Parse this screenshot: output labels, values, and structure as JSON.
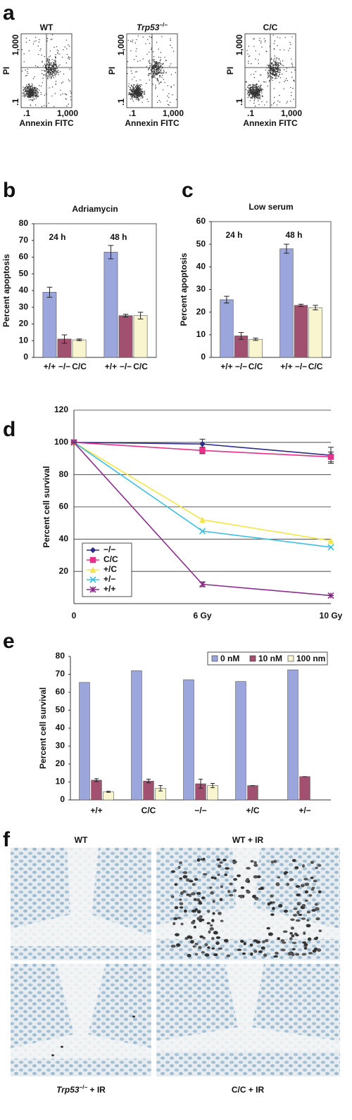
{
  "panel_labels": [
    "a",
    "b",
    "c",
    "d",
    "e",
    "f"
  ],
  "flow": {
    "x_label": "Annexin FITC",
    "y_label": "PI",
    "tick_labels": [
      ".1",
      "1,000"
    ],
    "plots": [
      {
        "title": "WT"
      },
      {
        "title_italic": "Trp53",
        "title_sup": "−/−"
      },
      {
        "title": "C/C"
      }
    ]
  },
  "chart_data": [
    {
      "type": "bar",
      "title": "Adriamycin",
      "y_label": "Percent apoptosis",
      "categories": [
        "24 h",
        "48 h"
      ],
      "series": [
        {
          "name": "+/+",
          "color": "#9ba6dc",
          "values": [
            39,
            63
          ],
          "errors": [
            3,
            4
          ]
        },
        {
          "name": "−/−",
          "color": "#a1506f",
          "values": [
            11,
            25
          ],
          "errors": [
            2.5,
            0.8
          ]
        },
        {
          "name": "C/C",
          "color": "#f8f5cf",
          "values": [
            10.5,
            25
          ],
          "errors": [
            0.5,
            2
          ]
        }
      ],
      "ylim": [
        0,
        80
      ],
      "yticks": [
        0,
        10,
        20,
        30,
        40,
        50,
        60,
        70,
        80
      ]
    },
    {
      "type": "bar",
      "title": "Low serum",
      "y_label": "Percent apoptosis",
      "categories": [
        "24 h",
        "48 h"
      ],
      "series": [
        {
          "name": "+/+",
          "color": "#9ba6dc",
          "values": [
            25.5,
            48
          ],
          "errors": [
            1.5,
            2
          ]
        },
        {
          "name": "−/−",
          "color": "#a1506f",
          "values": [
            9.5,
            23
          ],
          "errors": [
            1.5,
            0.5
          ]
        },
        {
          "name": "C/C",
          "color": "#f8f5cf",
          "values": [
            8,
            22
          ],
          "errors": [
            0.5,
            1
          ]
        }
      ],
      "ylim": [
        0,
        60
      ],
      "yticks": [
        0,
        10,
        20,
        30,
        40,
        50,
        60
      ]
    },
    {
      "type": "line",
      "y_label": "Percent cell survival",
      "categories": [
        "0",
        "6 Gy",
        "10 Gy"
      ],
      "series": [
        {
          "name": "−/−",
          "color": "#2c2c8a",
          "marker": "diamond",
          "values": [
            100,
            99,
            92
          ],
          "errors": [
            0,
            3,
            5
          ]
        },
        {
          "name": "C/C",
          "color": "#e6308a",
          "marker": "square",
          "values": [
            100,
            95,
            91
          ],
          "errors": [
            0,
            2,
            3
          ]
        },
        {
          "name": "+/C",
          "color": "#f3e54a",
          "marker": "triangle",
          "values": [
            100,
            52,
            39
          ]
        },
        {
          "name": "+/−",
          "color": "#3fbfe0",
          "marker": "x",
          "values": [
            100,
            45,
            35
          ]
        },
        {
          "name": "+/+",
          "color": "#8b2f8b",
          "marker": "star",
          "values": [
            100,
            12,
            5
          ],
          "errors": [
            0,
            1.5,
            0
          ]
        }
      ],
      "ylim": [
        0,
        120
      ],
      "yticks": [
        20,
        40,
        60,
        80,
        100,
        120
      ],
      "grid": true,
      "legend": "lower left"
    },
    {
      "type": "bar",
      "y_label": "Percent cell survival",
      "categories": [
        "+/+",
        "C/C",
        "−/−",
        "+/C",
        "+/−"
      ],
      "series": [
        {
          "name": "0 nM",
          "color": "#9ba6dc",
          "values": [
            65.5,
            72,
            67,
            66,
            72.5
          ]
        },
        {
          "name": "10 nM",
          "color": "#a1506f",
          "values": [
            11,
            10.5,
            9,
            8,
            13
          ],
          "errors": [
            0.8,
            1,
            2.5,
            0,
            0
          ]
        },
        {
          "name": "100 nm",
          "color": "#f8f5cf",
          "values": [
            4.5,
            6.5,
            8,
            null,
            null
          ],
          "errors": [
            0.3,
            1.5,
            1.2,
            null,
            null
          ]
        }
      ],
      "ylim": [
        0,
        80
      ],
      "yticks": [
        0,
        10,
        20,
        30,
        40,
        50,
        60,
        70,
        80
      ],
      "legend": "upper right"
    }
  ],
  "micrographs": {
    "panels": [
      {
        "title": "WT"
      },
      {
        "title": "WT + IR"
      },
      {
        "title_italic": "Trp53",
        "title_sup": "−/−",
        "title_rest": " + IR"
      },
      {
        "title": "C/C + IR"
      }
    ]
  }
}
